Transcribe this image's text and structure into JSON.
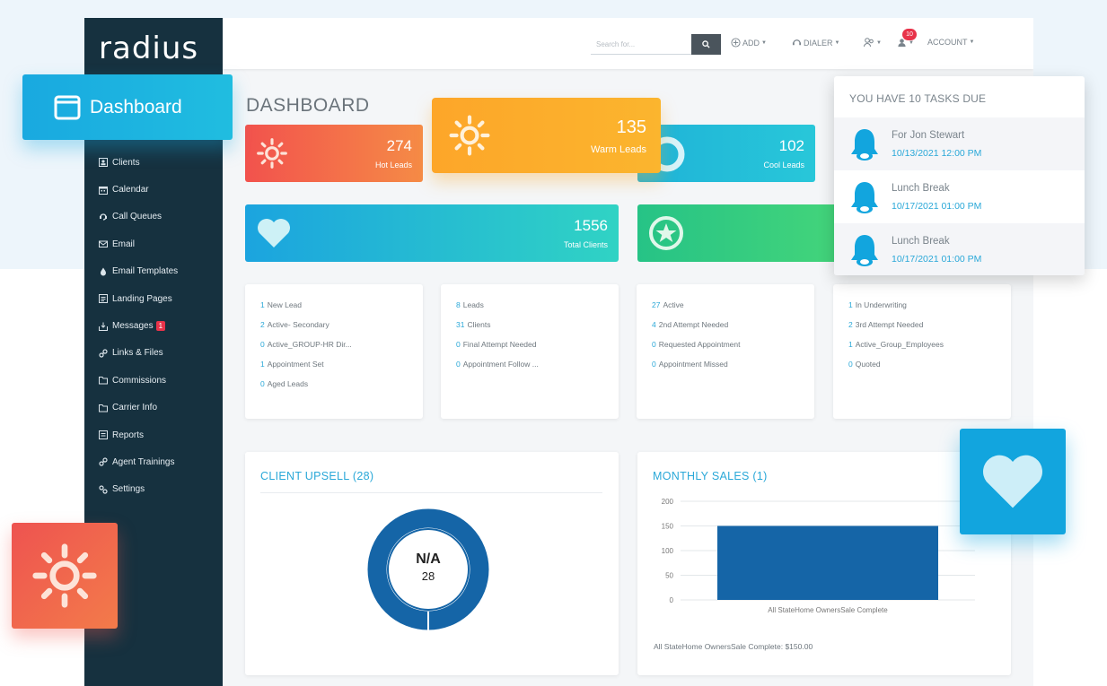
{
  "app": {
    "logo": "radius",
    "page_title": "DASHBOARD"
  },
  "sidebar": {
    "items": [
      {
        "label": "Clients",
        "icon": "clients-icon"
      },
      {
        "label": "Calendar",
        "icon": "calendar-icon"
      },
      {
        "label": "Call Queues",
        "icon": "call-queues-icon"
      },
      {
        "label": "Email",
        "icon": "email-icon"
      },
      {
        "label": "Email Templates",
        "icon": "drop-icon"
      },
      {
        "label": "Landing Pages",
        "icon": "landing-pages-icon"
      },
      {
        "label": "Messages",
        "icon": "messages-icon",
        "badge": "1"
      },
      {
        "label": "Links & Files",
        "icon": "link-icon"
      },
      {
        "label": "Commissions",
        "icon": "folder-icon"
      },
      {
        "label": "Carrier Info",
        "icon": "folder-icon"
      },
      {
        "label": "Reports",
        "icon": "reports-icon"
      },
      {
        "label": "Agent Trainings",
        "icon": "link-icon"
      },
      {
        "label": "Settings",
        "icon": "settings-icon"
      }
    ]
  },
  "topbar": {
    "search_placeholder": "Search for...",
    "add_label": "ADD",
    "dialer_label": "DIALER",
    "notification_count": "10",
    "account_label": "ACCOUNT"
  },
  "floating_dashboard": {
    "label": "Dashboard"
  },
  "stats": {
    "hot": {
      "value": "274",
      "label": "Hot Leads"
    },
    "warm": {
      "value": "135",
      "label": "Warm Leads"
    },
    "cool": {
      "value": "102",
      "label": "Cool Leads"
    },
    "total": {
      "value": "1556",
      "label": "Total Clients"
    }
  },
  "status_cards": [
    {
      "rows": [
        {
          "n": "1",
          "label": "New Lead"
        },
        {
          "n": "2",
          "label": "Active- Secondary"
        },
        {
          "n": "0",
          "label": "Active_GROUP-HR Dir..."
        },
        {
          "n": "1",
          "label": "Appointment Set"
        },
        {
          "n": "0",
          "label": "Aged Leads"
        }
      ]
    },
    {
      "rows": [
        {
          "n": "8",
          "label": "Leads"
        },
        {
          "n": "31",
          "label": "Clients"
        },
        {
          "n": "0",
          "label": "Final Attempt Needed"
        },
        {
          "n": "0",
          "label": "Appointment Follow ..."
        }
      ]
    },
    {
      "rows": [
        {
          "n": "27",
          "label": "Active"
        },
        {
          "n": "4",
          "label": "2nd Attempt Needed"
        },
        {
          "n": "0",
          "label": "Requested Appointment"
        },
        {
          "n": "0",
          "label": "Appointment Missed"
        }
      ]
    },
    {
      "rows": [
        {
          "n": "1",
          "label": "In Underwriting"
        },
        {
          "n": "2",
          "label": "3rd Attempt Needed"
        },
        {
          "n": "1",
          "label": "Active_Group_Employees"
        },
        {
          "n": "0",
          "label": "Quoted"
        }
      ]
    }
  ],
  "tasks": {
    "header": "YOU HAVE 10 TASKS DUE",
    "items": [
      {
        "title": "For Jon Stewart",
        "date": "10/13/2021 12:00 PM"
      },
      {
        "title": "Lunch Break",
        "date": "10/17/2021 01:00 PM"
      },
      {
        "title": "Lunch Break",
        "date": "10/17/2021 01:00 PM"
      }
    ]
  },
  "client_upsell": {
    "title": "CLIENT UPSELL (28)",
    "center_label": "N/A",
    "center_value": "28"
  },
  "monthly_sales": {
    "title": "MONTHLY SALES (1)",
    "footer": "All StateHome OwnersSale Complete: $150.00"
  },
  "chart_data": [
    {
      "type": "pie",
      "title": "CLIENT UPSELL (28)",
      "categories": [
        "N/A"
      ],
      "values": [
        28
      ]
    },
    {
      "type": "bar",
      "title": "MONTHLY SALES (1)",
      "categories": [
        "All StateHome OwnersSale Complete"
      ],
      "values": [
        150
      ],
      "yticks": [
        "0",
        "50",
        "100",
        "150",
        "200"
      ],
      "ylim": [
        0,
        200
      ],
      "grid": true,
      "color": "#1565a7"
    }
  ],
  "colors": {
    "sidebar": "#16313f",
    "accent": "#2aa8d8",
    "hot": "#f2524d",
    "warm": "#fda629",
    "cool": "#1fb3d8",
    "green": "#26c386",
    "badge": "#e8334a",
    "chart_blue": "#1565a7"
  }
}
